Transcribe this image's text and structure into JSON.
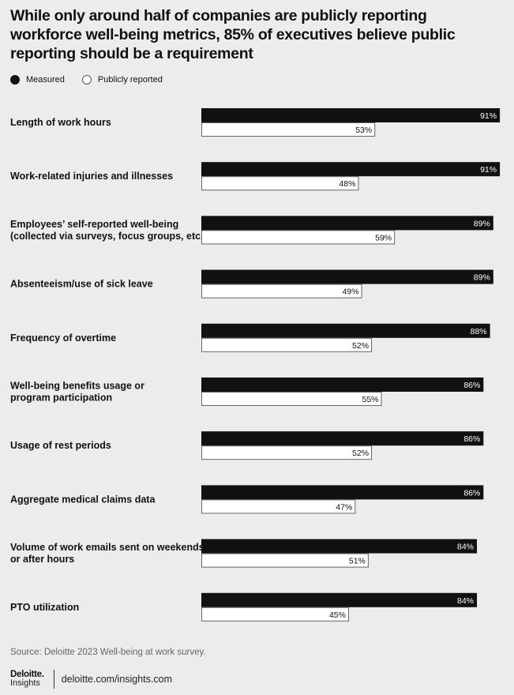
{
  "title": "While only around half of companies are publicly reporting workforce well-being metrics, 85% of executives believe public reporting should be a requirement",
  "legend": {
    "measured": "Measured",
    "reported": "Publicly reported"
  },
  "colors": {
    "measured": "#111111",
    "reported": "#ffffff",
    "background": "#ececec"
  },
  "chart_data": {
    "type": "bar",
    "orientation": "horizontal",
    "categories": [
      [
        "Length of work hours"
      ],
      [
        "Work-related injuries and illnesses"
      ],
      [
        "Employees’ self-reported well-being",
        "(collected via surveys, focus groups, etc.)"
      ],
      [
        "Absenteeism/use of sick leave"
      ],
      [
        "Frequency of overtime"
      ],
      [
        "Well-being benefits usage or",
        "program participation"
      ],
      [
        "Usage of rest periods"
      ],
      [
        "Aggregate medical claims data"
      ],
      [
        "Volume of work emails sent on weekends",
        "or after hours"
      ],
      [
        "PTO utilization"
      ]
    ],
    "series": [
      {
        "name": "Measured",
        "values": [
          91,
          91,
          89,
          89,
          88,
          86,
          86,
          86,
          84,
          84
        ]
      },
      {
        "name": "Publicly reported",
        "values": [
          53,
          48,
          59,
          49,
          52,
          55,
          52,
          47,
          51,
          45
        ]
      }
    ],
    "value_suffix": "%",
    "xlim": [
      0,
      100
    ],
    "legend_position": "top-left",
    "grid": false
  },
  "source": "Source: Deloitte 2023 Well-being at work survey.",
  "footer": {
    "logo_main": "Deloitte",
    "logo_dot": ".",
    "logo_sub": "Insights",
    "site": "deloitte.com/insights.com"
  }
}
